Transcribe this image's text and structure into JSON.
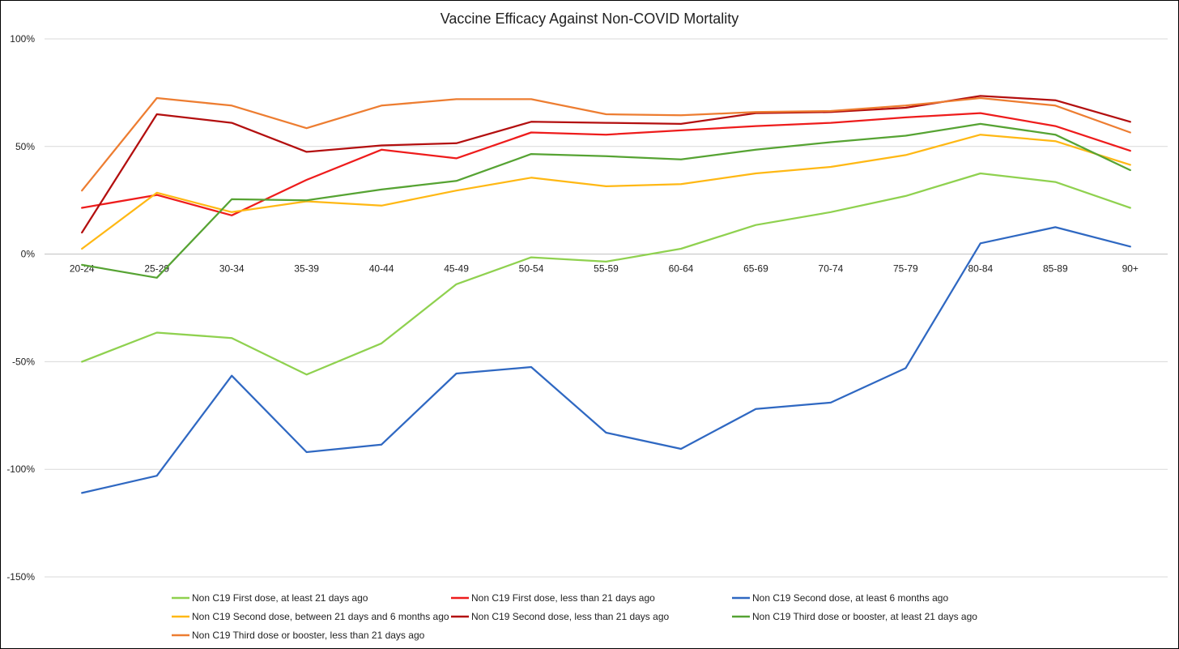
{
  "chart_data": {
    "type": "line",
    "title": "Vaccine Efficacy Against Non-COVID Mortality",
    "xlabel": "",
    "ylabel": "",
    "ylim": [
      -150,
      100
    ],
    "y_ticks": [
      100,
      50,
      0,
      -50,
      -100,
      -150
    ],
    "y_tick_labels": [
      "100%",
      "50%",
      "0%",
      "-50%",
      "-100%",
      "-150%"
    ],
    "grid": true,
    "legend_position": "bottom",
    "categories": [
      "20-24",
      "25-29",
      "30-34",
      "35-39",
      "40-44",
      "45-49",
      "50-54",
      "55-59",
      "60-64",
      "65-69",
      "70-74",
      "75-79",
      "80-84",
      "85-89",
      "90+"
    ],
    "series": [
      {
        "name": "Non C19 First dose, at least 21 days ago",
        "color": "#8fd14f",
        "values": [
          -50,
          -36.5,
          -39,
          -56,
          -41.5,
          -14,
          -1.5,
          -3.5,
          2.5,
          13.5,
          19.5,
          27,
          37.5,
          33.5,
          21.5
        ]
      },
      {
        "name": "Non C19 First dose, less than 21 days ago",
        "color": "#ee1c1c",
        "values": [
          21.5,
          27.5,
          18,
          34.5,
          48.5,
          44.5,
          56.5,
          55.5,
          57.5,
          59.5,
          61,
          63.5,
          65.5,
          59.5,
          48
        ]
      },
      {
        "name": "Non C19 Second dose, at least 6 months ago",
        "color": "#2f68c2",
        "values": [
          -111,
          -103,
          -56.5,
          -92,
          -88.5,
          -55.5,
          -52.5,
          -83,
          -90.5,
          -72,
          -69,
          -53,
          5,
          12.5,
          3.5
        ]
      },
      {
        "name": "Non C19 Second dose, between 21 days and 6 months ago",
        "color": "#ffb814",
        "values": [
          2.5,
          28.5,
          19.5,
          24.5,
          22.5,
          29.5,
          35.5,
          31.5,
          32.5,
          37.5,
          40.5,
          46,
          55.5,
          52.5,
          41.5
        ]
      },
      {
        "name": "Non C19 Second dose, less than 21 days ago",
        "color": "#b30f0f",
        "values": [
          10,
          65,
          61,
          47.5,
          50.5,
          51.5,
          61.5,
          61,
          60.5,
          65.5,
          66,
          68,
          73.5,
          71.5,
          61.5
        ]
      },
      {
        "name": "Non C19 Third dose or booster, at least 21 days ago",
        "color": "#56a333",
        "values": [
          -5,
          -11,
          25.5,
          25,
          30,
          34,
          46.5,
          45.5,
          44,
          48.5,
          52,
          55,
          60.5,
          55.5,
          39
        ]
      },
      {
        "name": "Non C19 Third dose or booster, less than 21 days ago",
        "color": "#ed7d31",
        "values": [
          29.5,
          72.5,
          69,
          58.5,
          69,
          72,
          72,
          65,
          64.5,
          66,
          66.5,
          69,
          72.5,
          69,
          56.5
        ]
      }
    ]
  }
}
